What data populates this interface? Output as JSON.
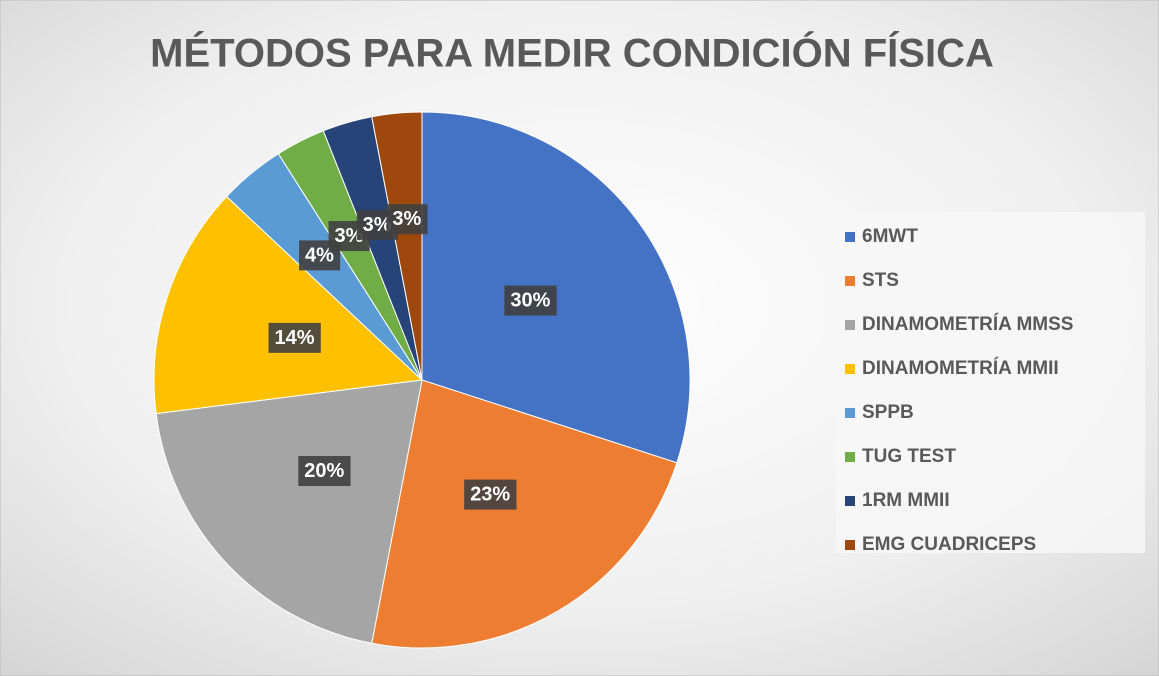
{
  "chart_data": {
    "type": "pie",
    "title": "MÉTODOS PARA MEDIR CONDICIÓN FÍSICA",
    "categories": [
      "6MWT",
      "STS",
      "DINAMOMETRÍA MMSS",
      "DINAMOMETRÍA MMII",
      "SPPB",
      "TUG TEST",
      "1RM MMII",
      "EMG CUADRICEPS"
    ],
    "values": [
      30,
      23,
      20,
      14,
      4,
      3,
      3,
      3
    ],
    "value_labels": [
      "30%",
      "23%",
      "20%",
      "14%",
      "4%",
      "3%",
      "3%",
      "3%"
    ],
    "colors": [
      "#4472C4",
      "#ED7D31",
      "#A5A5A5",
      "#FFC000",
      "#5B9BD5",
      "#70AD47",
      "#264478",
      "#9E480E"
    ],
    "legend": "right"
  }
}
